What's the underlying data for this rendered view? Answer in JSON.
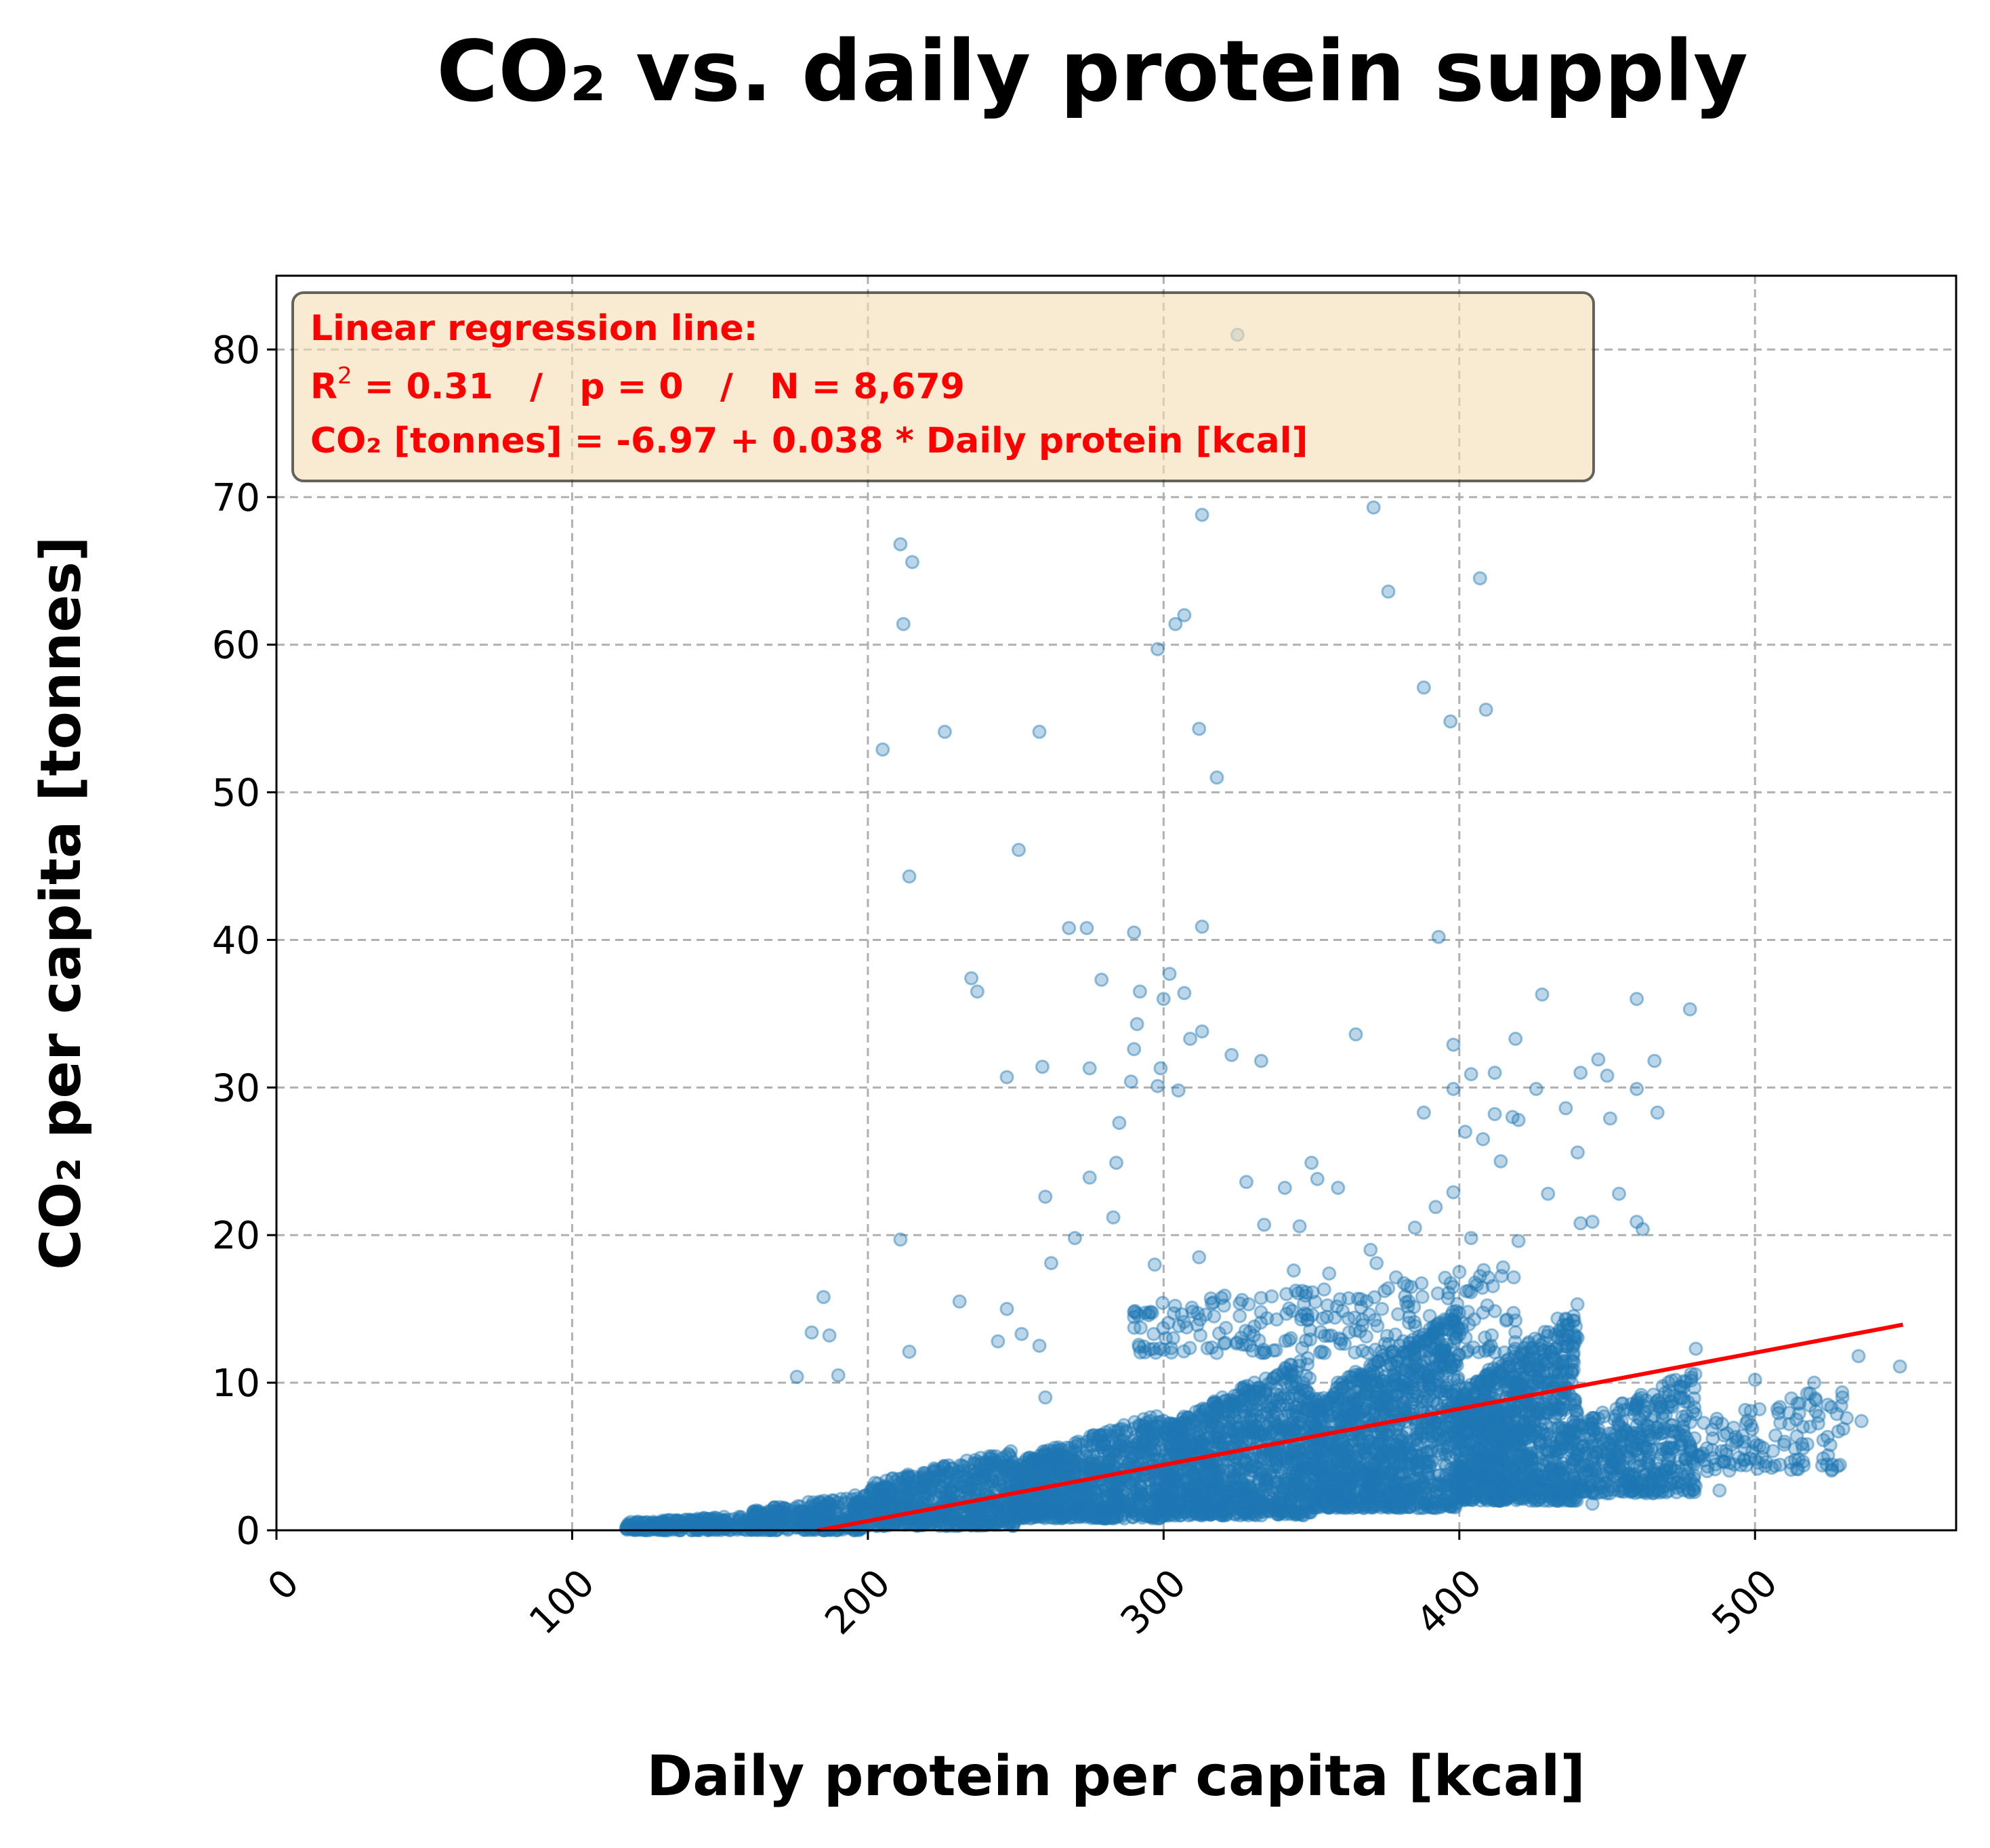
{
  "chart_data": {
    "type": "scatter",
    "title": "CO₂ vs. daily protein supply",
    "xlabel": "Daily protein per capita [kcal]",
    "ylabel": "CO₂ per capita [tonnes]",
    "xlim": [
      0,
      568
    ],
    "ylim": [
      0,
      85
    ],
    "xticks": [
      0,
      100,
      200,
      300,
      400,
      500
    ],
    "yticks": [
      0,
      10,
      20,
      30,
      40,
      50,
      60,
      70,
      80
    ],
    "xtick_rotation": 45,
    "grid": true,
    "grid_style": "dashed",
    "point_color": "#1f77b4",
    "point_alpha": 0.3,
    "regression_color": "#ff0000",
    "annotation": {
      "position": "top-left",
      "background": "#f5deb3",
      "text_color": "#ff0000",
      "line1": "Linear regression line:",
      "r2_symbol": "R",
      "r2_sup": "2",
      "r2_value": " = 0.31   /   p = 0   /   N = 8,679",
      "line3": "CO₂ [tonnes] = -6.97 + 0.038 * Daily protein [kcal]"
    },
    "regression": {
      "intercept": -6.97,
      "slope": 0.038,
      "x_range": [
        183,
        550
      ],
      "r2": 0.31,
      "p": 0,
      "n": 8679
    },
    "series": [
      {
        "name": "",
        "outliers": [
          [
            325,
            81.0
          ],
          [
            371,
            69.3
          ],
          [
            313,
            68.8
          ],
          [
            211,
            66.8
          ],
          [
            215,
            65.6
          ],
          [
            407,
            64.5
          ],
          [
            376,
            63.6
          ],
          [
            307,
            62.0
          ],
          [
            212,
            61.4
          ],
          [
            304,
            61.4
          ],
          [
            298,
            59.7
          ],
          [
            388,
            57.1
          ],
          [
            409,
            55.6
          ],
          [
            397,
            54.8
          ],
          [
            226,
            54.1
          ],
          [
            258,
            54.1
          ],
          [
            312,
            54.3
          ],
          [
            205,
            52.9
          ],
          [
            318,
            51.0
          ],
          [
            251,
            46.1
          ],
          [
            214,
            44.3
          ],
          [
            268,
            40.8
          ],
          [
            274,
            40.8
          ],
          [
            290,
            40.5
          ],
          [
            313,
            40.9
          ],
          [
            393,
            40.2
          ],
          [
            235,
            37.4
          ],
          [
            279,
            37.3
          ],
          [
            302,
            37.7
          ],
          [
            237,
            36.5
          ],
          [
            292,
            36.5
          ],
          [
            307,
            36.4
          ],
          [
            428,
            36.3
          ],
          [
            460,
            36.0
          ],
          [
            478,
            35.3
          ],
          [
            300,
            36.0
          ],
          [
            291,
            34.3
          ],
          [
            313,
            33.8
          ],
          [
            365,
            33.6
          ],
          [
            309,
            33.3
          ],
          [
            398,
            32.9
          ],
          [
            419,
            33.3
          ],
          [
            290,
            32.6
          ],
          [
            323,
            32.2
          ],
          [
            333,
            31.8
          ],
          [
            259,
            31.4
          ],
          [
            275,
            31.3
          ],
          [
            299,
            31.3
          ],
          [
            447,
            31.9
          ],
          [
            466,
            31.8
          ],
          [
            412,
            31.0
          ],
          [
            247,
            30.7
          ],
          [
            289,
            30.4
          ],
          [
            298,
            30.1
          ],
          [
            305,
            29.8
          ],
          [
            398,
            29.9
          ],
          [
            460,
            29.9
          ],
          [
            388,
            28.3
          ],
          [
            412,
            28.2
          ],
          [
            467,
            28.3
          ],
          [
            285,
            27.6
          ],
          [
            451,
            27.9
          ],
          [
            284,
            24.9
          ],
          [
            328,
            23.6
          ],
          [
            341,
            23.2
          ],
          [
            359,
            23.2
          ],
          [
            275,
            23.9
          ],
          [
            398,
            22.9
          ],
          [
            454,
            22.8
          ],
          [
            260,
            22.6
          ],
          [
            283,
            21.2
          ],
          [
            346,
            20.6
          ],
          [
            441,
            20.8
          ],
          [
            270,
            19.8
          ],
          [
            211,
            19.7
          ],
          [
            262,
            18.1
          ],
          [
            297,
            18.0
          ],
          [
            312,
            18.5
          ],
          [
            344,
            17.6
          ],
          [
            185,
            15.8
          ],
          [
            231,
            15.5
          ],
          [
            247,
            15.0
          ],
          [
            181,
            13.4
          ],
          [
            187,
            13.2
          ],
          [
            252,
            13.3
          ],
          [
            244,
            12.8
          ],
          [
            258,
            12.5
          ],
          [
            176,
            10.4
          ],
          [
            190,
            10.5
          ],
          [
            214,
            12.1
          ],
          [
            480,
            12.3
          ],
          [
            500,
            10.2
          ],
          [
            520,
            10.0
          ],
          [
            535,
            11.8
          ],
          [
            549,
            11.1
          ],
          [
            531,
            7.6
          ],
          [
            536,
            7.4
          ],
          [
            497,
            4.4
          ],
          [
            512,
            4.6
          ],
          [
            488,
            2.7
          ],
          [
            458,
            2.6
          ],
          [
            445,
            1.8
          ],
          [
            470,
            3.9
          ],
          [
            510,
            6.0
          ],
          [
            465,
            7.5
          ],
          [
            452,
            5.5
          ],
          [
            260,
            9.0
          ],
          [
            290,
            14.8
          ],
          [
            350,
            24.9
          ],
          [
            352,
            23.8
          ],
          [
            370,
            19.0
          ],
          [
            430,
            22.8
          ],
          [
            440,
            25.6
          ],
          [
            420,
            27.8
          ],
          [
            402,
            27.0
          ],
          [
            392,
            21.9
          ],
          [
            404,
            19.8
          ],
          [
            385,
            20.5
          ],
          [
            356,
            17.4
          ],
          [
            420,
            19.6
          ],
          [
            404,
            30.9
          ],
          [
            441,
            31.0
          ],
          [
            450,
            30.8
          ],
          [
            436,
            28.6
          ],
          [
            426,
            29.9
          ],
          [
            418,
            28.0
          ],
          [
            408,
            26.5
          ],
          [
            414,
            25.0
          ],
          [
            445,
            20.9
          ],
          [
            460,
            20.9
          ],
          [
            462,
            20.4
          ],
          [
            334,
            20.7
          ],
          [
            372,
            18.1
          ],
          [
            348,
            15.9
          ]
        ],
        "density_clusters": [
          {
            "x": [
              118,
              160
            ],
            "y": [
              0.0,
              1.0
            ],
            "n": 260
          },
          {
            "x": [
              160,
              200
            ],
            "y": [
              0.0,
              2.5
            ],
            "n": 380
          },
          {
            "x": [
              200,
              250
            ],
            "y": [
              0.3,
              5.5
            ],
            "n": 650
          },
          {
            "x": [
              250,
              300
            ],
            "y": [
              0.8,
              8.0
            ],
            "n": 900
          },
          {
            "x": [
              300,
              350
            ],
            "y": [
              1.0,
              12.0
            ],
            "n": 1150
          },
          {
            "x": [
              350,
              400
            ],
            "y": [
              1.5,
              15.0
            ],
            "n": 1300
          },
          {
            "x": [
              400,
              440
            ],
            "y": [
              2.0,
              15.5
            ],
            "n": 1100
          },
          {
            "x": [
              440,
              480
            ],
            "y": [
              2.5,
              11.0
            ],
            "n": 450
          },
          {
            "x": [
              480,
              530
            ],
            "y": [
              4.0,
              10.0
            ],
            "n": 120
          },
          {
            "x": [
              290,
              420
            ],
            "y": [
              12.0,
              18.0
            ],
            "n": 260
          }
        ]
      }
    ]
  }
}
